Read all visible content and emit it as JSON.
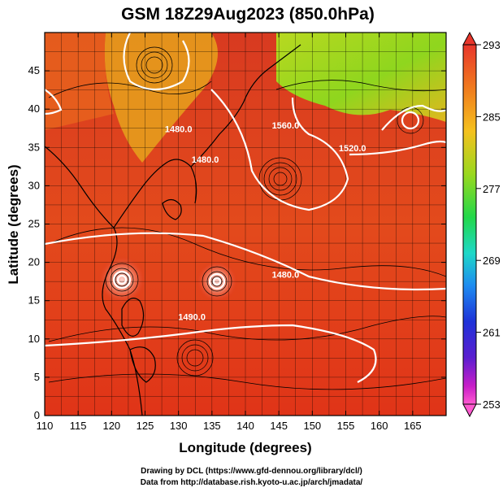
{
  "title": "GSM 18Z29Aug2023 (850.0hPa)",
  "xlabel": "Longitude (degrees)",
  "ylabel": "Latitude (degrees)",
  "credits": [
    "Drawing by DCL (https://www.gfd-dennou.org/library/dcl/)",
    "Data from http://database.rish.kyoto-u.ac.jp/arch/jmadata/"
  ],
  "map": {
    "lon_range": [
      110,
      170
    ],
    "lat_range": [
      0,
      50
    ],
    "x_ticks": [
      110,
      115,
      120,
      125,
      130,
      135,
      140,
      145,
      150,
      155,
      160,
      165
    ],
    "y_ticks": [
      0,
      5,
      10,
      15,
      20,
      25,
      30,
      35,
      40,
      45
    ],
    "contour_labels": [
      {
        "text": "1560.0",
        "lon": 146,
        "lat": 37.5
      },
      {
        "text": "1520.0",
        "lon": 156,
        "lat": 34.5
      },
      {
        "text": "1480.0",
        "lon": 130,
        "lat": 37
      },
      {
        "text": "1480.0",
        "lon": 134,
        "lat": 33
      },
      {
        "text": "1480.0",
        "lon": 146,
        "lat": 18
      },
      {
        "text": "1490.0",
        "lon": 132,
        "lat": 12.5
      }
    ]
  },
  "colorbar": {
    "ticks": [
      293,
      285,
      277,
      269,
      261,
      253
    ],
    "colors": [
      "#e8362b",
      "#f07a1e",
      "#f5c11e",
      "#9ad81e",
      "#22d84a",
      "#1ed8c8",
      "#1e8cf0",
      "#1e32d8",
      "#5a1ed0",
      "#c81ec8",
      "#ff5ad0"
    ]
  }
}
